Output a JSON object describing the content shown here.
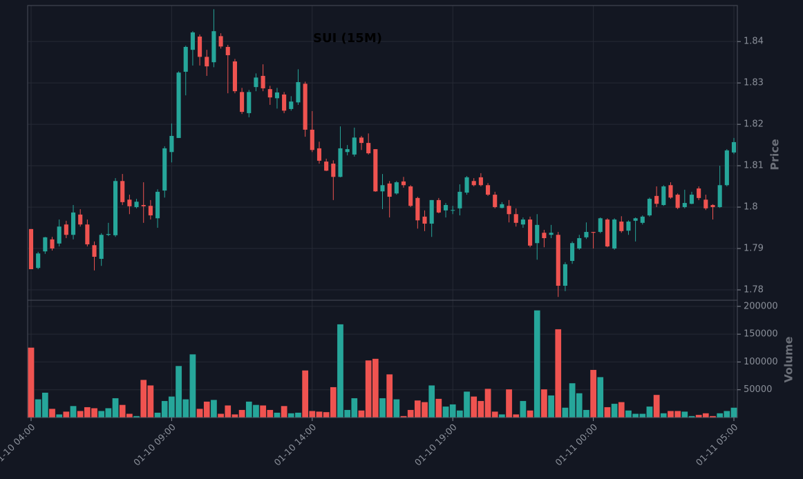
{
  "chart_data": {
    "type": "candlestick",
    "title": "SUI (15M)",
    "x": [
      "01-10 04:00",
      "01-10 04:15",
      "01-10 04:30",
      "01-10 04:45",
      "01-10 05:00",
      "01-10 05:15",
      "01-10 05:30",
      "01-10 05:45",
      "01-10 06:00",
      "01-10 06:15",
      "01-10 06:30",
      "01-10 06:45",
      "01-10 07:00",
      "01-10 07:15",
      "01-10 07:30",
      "01-10 07:45",
      "01-10 08:00",
      "01-10 08:15",
      "01-10 08:30",
      "01-10 08:45",
      "01-10 09:00",
      "01-10 09:15",
      "01-10 09:30",
      "01-10 09:45",
      "01-10 10:00",
      "01-10 10:15",
      "01-10 10:30",
      "01-10 10:45",
      "01-10 11:00",
      "01-10 11:15",
      "01-10 11:30",
      "01-10 11:45",
      "01-10 12:00",
      "01-10 12:15",
      "01-10 12:30",
      "01-10 12:45",
      "01-10 13:00",
      "01-10 13:15",
      "01-10 13:30",
      "01-10 13:45",
      "01-10 14:00",
      "01-10 14:15",
      "01-10 14:30",
      "01-10 14:45",
      "01-10 15:00",
      "01-10 15:15",
      "01-10 15:30",
      "01-10 15:45",
      "01-10 16:00",
      "01-10 16:15",
      "01-10 16:30",
      "01-10 16:45",
      "01-10 17:00",
      "01-10 17:15",
      "01-10 17:30",
      "01-10 17:45",
      "01-10 18:00",
      "01-10 18:15",
      "01-10 18:30",
      "01-10 18:45",
      "01-10 19:00",
      "01-10 19:15",
      "01-10 19:30",
      "01-10 19:45",
      "01-10 20:00",
      "01-10 20:15",
      "01-10 20:30",
      "01-10 20:45",
      "01-10 21:00",
      "01-10 21:15",
      "01-10 21:30",
      "01-10 21:45",
      "01-10 22:00",
      "01-10 22:15",
      "01-10 22:30",
      "01-10 22:45",
      "01-10 23:00",
      "01-10 23:15",
      "01-10 23:30",
      "01-10 23:45",
      "01-11 00:00",
      "01-11 00:15",
      "01-11 00:30",
      "01-11 00:45",
      "01-11 01:00",
      "01-11 01:15",
      "01-11 01:30",
      "01-11 01:45",
      "01-11 02:00",
      "01-11 02:15",
      "01-11 02:30",
      "01-11 02:45",
      "01-11 03:00",
      "01-11 03:15",
      "01-11 03:30",
      "01-11 03:45",
      "01-11 04:00",
      "01-11 04:15",
      "01-11 04:30",
      "01-11 04:45",
      "01-11 05:00"
    ],
    "open": [
      1.7947,
      1.7853,
      1.7893,
      1.7922,
      1.7912,
      1.7958,
      1.7933,
      1.7982,
      1.7958,
      1.7908,
      1.7875,
      1.7933,
      1.7932,
      1.8063,
      1.8018,
      1.8,
      1.8005,
      1.8003,
      1.7973,
      1.804,
      1.8133,
      1.8167,
      1.8327,
      1.838,
      1.8412,
      1.8363,
      1.835,
      1.8413,
      1.8387,
      1.8352,
      1.8278,
      1.8227,
      1.829,
      1.8317,
      1.8285,
      1.8263,
      1.8272,
      1.8237,
      1.8253,
      1.8298,
      1.8187,
      1.8142,
      1.811,
      1.8105,
      1.8073,
      1.8133,
      1.8127,
      1.8168,
      1.8155,
      1.814,
      1.8038,
      1.8057,
      1.8033,
      1.8062,
      1.805,
      1.8022,
      1.7977,
      1.796,
      1.8017,
      1.7992,
      1.7992,
      1.7997,
      1.8035,
      1.8063,
      1.8072,
      1.8053,
      1.803,
      1.7998,
      1.8003,
      1.7983,
      1.7958,
      1.797,
      1.7913,
      1.7938,
      1.7933,
      1.7933,
      1.781,
      1.787,
      1.79,
      1.7927,
      1.794,
      1.794,
      1.797,
      1.79,
      1.7965,
      1.7943,
      1.7967,
      1.7962,
      1.798,
      1.8027,
      1.8005,
      1.8053,
      1.803,
      1.8,
      1.8008,
      1.8045,
      1.8018,
      1.8005,
      1.8,
      1.8053,
      1.8132
    ],
    "high": [
      1.7947,
      1.7892,
      1.7928,
      1.7928,
      1.797,
      1.7967,
      1.8005,
      1.7995,
      1.797,
      1.7917,
      1.7937,
      1.7962,
      1.807,
      1.808,
      1.803,
      1.802,
      1.806,
      1.8017,
      1.8043,
      1.8147,
      1.8202,
      1.8328,
      1.839,
      1.8425,
      1.8417,
      1.838,
      1.8478,
      1.842,
      1.8392,
      1.8358,
      1.8288,
      1.8283,
      1.8323,
      1.8345,
      1.8293,
      1.8288,
      1.8278,
      1.8268,
      1.8333,
      1.8303,
      1.8232,
      1.8158,
      1.8117,
      1.8113,
      1.8195,
      1.815,
      1.8192,
      1.8172,
      1.8178,
      1.814,
      1.808,
      1.8063,
      1.8063,
      1.8073,
      1.8053,
      1.8025,
      1.7992,
      1.8017,
      1.8022,
      1.801,
      1.8003,
      1.8055,
      1.8075,
      1.807,
      1.8082,
      1.8058,
      1.8037,
      1.8012,
      1.8017,
      1.7997,
      1.7975,
      1.7977,
      1.7983,
      1.7945,
      1.7957,
      1.794,
      1.7867,
      1.7917,
      1.7933,
      1.7963,
      1.794,
      1.7975,
      1.7973,
      1.7973,
      1.7978,
      1.7968,
      1.7975,
      1.798,
      1.8023,
      1.805,
      1.8053,
      1.806,
      1.8033,
      1.8042,
      1.8037,
      1.805,
      1.803,
      1.8007,
      1.81,
      1.814,
      1.8167
    ],
    "low": [
      1.785,
      1.785,
      1.7887,
      1.7895,
      1.7905,
      1.7925,
      1.7922,
      1.7953,
      1.7905,
      1.7847,
      1.7858,
      1.793,
      1.7928,
      1.8005,
      1.7983,
      1.7997,
      1.7962,
      1.797,
      1.795,
      1.8023,
      1.8108,
      1.8167,
      1.827,
      1.8342,
      1.8342,
      1.8317,
      1.8338,
      1.8383,
      1.8275,
      1.8275,
      1.8225,
      1.8217,
      1.828,
      1.828,
      1.8247,
      1.8238,
      1.8227,
      1.8233,
      1.8247,
      1.817,
      1.8133,
      1.8105,
      1.8087,
      1.8017,
      1.8072,
      1.8125,
      1.8122,
      1.8138,
      1.8127,
      1.8037,
      1.7995,
      1.7975,
      1.803,
      1.8047,
      1.8,
      1.7948,
      1.7942,
      1.7928,
      1.7985,
      1.7975,
      1.7983,
      1.798,
      1.803,
      1.805,
      1.805,
      1.8027,
      1.7997,
      1.7997,
      1.7963,
      1.7953,
      1.795,
      1.7903,
      1.7873,
      1.7903,
      1.7925,
      1.7783,
      1.7797,
      1.7863,
      1.7897,
      1.7923,
      1.79,
      1.7937,
      1.7903,
      1.7897,
      1.7938,
      1.7933,
      1.7917,
      1.7958,
      1.7977,
      1.8,
      1.8003,
      1.802,
      1.7995,
      1.7997,
      1.8007,
      1.8017,
      1.7993,
      1.797,
      1.7998,
      1.805,
      1.8128
    ],
    "close": [
      1.785,
      1.7888,
      1.7927,
      1.79,
      1.7953,
      1.7933,
      1.7987,
      1.7958,
      1.791,
      1.788,
      1.7933,
      1.7935,
      1.8063,
      1.8012,
      1.8002,
      1.8013,
      1.8002,
      1.798,
      1.8037,
      1.8142,
      1.8172,
      1.8325,
      1.8387,
      1.8422,
      1.8363,
      1.834,
      1.8425,
      1.8388,
      1.8367,
      1.828,
      1.823,
      1.8278,
      1.8313,
      1.8287,
      1.8265,
      1.8277,
      1.8233,
      1.8255,
      1.8302,
      1.8187,
      1.8138,
      1.8112,
      1.8088,
      1.8073,
      1.8142,
      1.814,
      1.8168,
      1.8155,
      1.813,
      1.8038,
      1.8053,
      1.8025,
      1.806,
      1.8053,
      1.8003,
      1.7968,
      1.796,
      1.8017,
      1.7987,
      1.8005,
      1.7993,
      1.8037,
      1.8072,
      1.8053,
      1.8053,
      1.803,
      1.8,
      1.8007,
      1.7983,
      1.7962,
      1.797,
      1.7907,
      1.7957,
      1.7925,
      1.7938,
      1.781,
      1.7862,
      1.7913,
      1.7925,
      1.794,
      1.7938,
      1.7973,
      1.7905,
      1.797,
      1.7942,
      1.7965,
      1.7973,
      1.7977,
      1.802,
      1.8008,
      1.805,
      1.8023,
      1.7998,
      1.801,
      1.803,
      1.8022,
      1.7997,
      1.8,
      1.8053,
      1.8137,
      1.8157
    ],
    "volume": [
      126000,
      33000,
      45000,
      16000,
      6000,
      11000,
      21000,
      12000,
      19000,
      17000,
      12000,
      17000,
      35000,
      23000,
      7000,
      3000,
      68000,
      58000,
      9000,
      30000,
      38000,
      93000,
      33000,
      114000,
      16000,
      29000,
      32000,
      7000,
      22000,
      6000,
      14000,
      29000,
      23000,
      22000,
      14000,
      9000,
      21000,
      8000,
      9000,
      85000,
      12000,
      11000,
      10000,
      55000,
      168000,
      14000,
      35000,
      13000,
      103000,
      106000,
      35000,
      78000,
      33000,
      3000,
      14000,
      31000,
      28000,
      58000,
      34000,
      20000,
      24000,
      13000,
      47000,
      38000,
      30000,
      52000,
      11000,
      6000,
      51000,
      6000,
      30000,
      13000,
      193000,
      51000,
      40000,
      159000,
      18000,
      62000,
      44000,
      14000,
      86000,
      73000,
      19000,
      25000,
      28000,
      13000,
      7000,
      7000,
      20000,
      41000,
      8000,
      12000,
      12000,
      11000,
      3000,
      5000,
      8000,
      3000,
      8000,
      12000,
      18000
    ],
    "up_color": "#26a69a",
    "down_color": "#ef5350",
    "xticks": [
      "01-10 04:00",
      "01-10 09:00",
      "01-10 14:00",
      "01-10 19:00",
      "01-11 00:00",
      "01-11 05:00"
    ],
    "ylabel": "Price",
    "ylim": [
      1.7775,
      1.8487
    ],
    "yticks": [
      1.78,
      1.79,
      1.8,
      1.81,
      1.82,
      1.83,
      1.84
    ],
    "volume_label": "Volume",
    "volume_ylim": [
      0,
      211000
    ],
    "volume_yticks": [
      50000,
      100000,
      150000,
      200000
    ],
    "grid": true
  }
}
